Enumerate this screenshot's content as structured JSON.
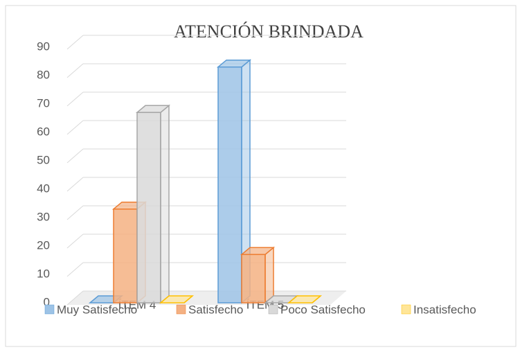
{
  "chart_data": {
    "type": "bar3d",
    "title": "ATENCIÓN BRINDADA",
    "categories": [
      "ÍTEM 4",
      "ÍTEM 5"
    ],
    "series": [
      {
        "name": "Muy Satisfecho",
        "color": "#9dc3e6",
        "stroke": "#5b9bd5",
        "values": [
          0,
          83
        ]
      },
      {
        "name": "Satisfecho",
        "color": "#f4b183",
        "stroke": "#ed7d31",
        "values": [
          33,
          17
        ]
      },
      {
        "name": "Poco Satisfecho",
        "color": "#d9d9d9",
        "stroke": "#a5a5a5",
        "values": [
          67,
          0
        ]
      },
      {
        "name": "Insatisfecho",
        "color": "#ffe699",
        "stroke": "#ffc000",
        "values": [
          0,
          0
        ]
      }
    ],
    "ylim": [
      0,
      90
    ],
    "yticks": [
      0,
      10,
      20,
      30,
      40,
      50,
      60,
      70,
      80,
      90
    ],
    "grid": true,
    "legend": "bottom"
  }
}
